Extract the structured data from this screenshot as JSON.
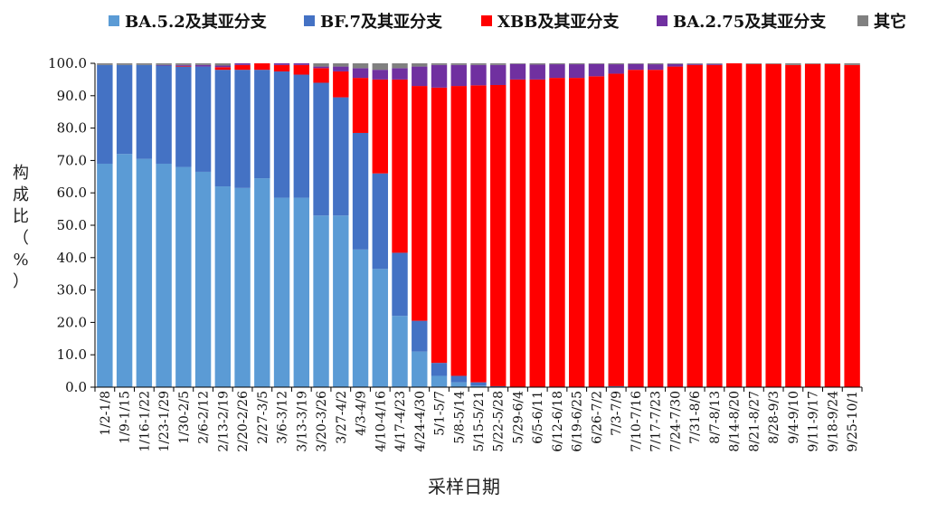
{
  "chart_data": {
    "type": "bar",
    "stacked": true,
    "xlabel": "采样日期",
    "ylabel": "构成比（%）",
    "ylim": [
      0,
      100
    ],
    "yticks": [
      "0.0",
      "10.0",
      "20.0",
      "30.0",
      "40.0",
      "50.0",
      "60.0",
      "70.0",
      "80.0",
      "90.0",
      "100.0"
    ],
    "legend_position": "top",
    "categories": [
      "1/2-1/8",
      "1/9-1/15",
      "1/16-1/22",
      "1/23-1/29",
      "1/30-2/5",
      "2/6-2/12",
      "2/13-2/19",
      "2/20-2/26",
      "2/27-3/5",
      "3/6-3/12",
      "3/13-3/19",
      "3/20-3/26",
      "3/27-4/2",
      "4/3-4/9",
      "4/10-4/16",
      "4/17-4/23",
      "4/24-4/30",
      "5/1-5/7",
      "5/8-5/14",
      "5/15-5/21",
      "5/22-5/28",
      "5/29-6/4",
      "6/5-6/11",
      "6/12-6/18",
      "6/19-6/25",
      "6/26-7/2",
      "7/3-7/9",
      "7/10-7/16",
      "7/17-7/23",
      "7/24-7/30",
      "7/31-8/6",
      "8/7-8/13",
      "8/14-8/20",
      "8/21-8/27",
      "8/28-9/3",
      "9/4-9/10",
      "9/11-9/17",
      "9/18-9/24",
      "9/25-10/1"
    ],
    "series": [
      {
        "name": "BA.5.2及其亚分支",
        "color": "#5b9bd5",
        "values": [
          69,
          72,
          70.5,
          69,
          68,
          66.5,
          62,
          61.5,
          64.5,
          58.5,
          58.5,
          53,
          53,
          42.5,
          36.5,
          22,
          11,
          3.5,
          1.5,
          0.5,
          0,
          0,
          0,
          0,
          0,
          0,
          0.3,
          0,
          0,
          0,
          0,
          0,
          0,
          0,
          0,
          0,
          0,
          0,
          0
        ]
      },
      {
        "name": "BF.7及其亚分支",
        "color": "#4472c4",
        "values": [
          30.5,
          27.5,
          29,
          30.3,
          31,
          32.5,
          36,
          36.5,
          33.5,
          39,
          38,
          41,
          36.5,
          36,
          29.5,
          19.5,
          9.5,
          4,
          2,
          1,
          0.3,
          0,
          0,
          0,
          0,
          0,
          0,
          0,
          0,
          0,
          0,
          0,
          0,
          0,
          0,
          0,
          0,
          0,
          0
        ]
      },
      {
        "name": "XBB及其亚分支",
        "color": "#ff0000",
        "values": [
          0,
          0,
          0,
          0,
          0.2,
          0,
          0.8,
          1.5,
          2,
          2,
          3,
          4.5,
          8,
          17,
          29,
          53.5,
          72.5,
          85,
          89.5,
          91.7,
          93,
          95,
          95,
          95.5,
          95.5,
          96,
          96.5,
          98,
          98,
          99,
          99.5,
          99.5,
          100,
          99.8,
          99.8,
          99.5,
          99.8,
          99.8,
          99.5
        ]
      },
      {
        "name": "BA.2.75及其亚分支",
        "color": "#7030a0",
        "values": [
          0,
          0,
          0,
          0.2,
          0.3,
          0.5,
          0.5,
          0.5,
          0.5,
          0.5,
          0.5,
          0.5,
          1.5,
          3,
          3,
          3.5,
          6,
          7,
          6.5,
          6.3,
          6.2,
          4.8,
          4.6,
          4.2,
          4.2,
          3.8,
          2.9,
          1.8,
          1.7,
          0.8,
          0.3,
          0.3,
          0,
          0,
          0,
          0,
          0,
          0,
          0
        ]
      },
      {
        "name": "其它",
        "color": "#808080",
        "values": [
          0.5,
          0.5,
          0.5,
          0.5,
          0.5,
          0.5,
          0.7,
          0,
          0,
          0,
          0,
          1,
          1,
          1.5,
          2,
          1.5,
          1,
          0.5,
          0.5,
          0.5,
          0.5,
          0.2,
          0.4,
          0.3,
          0.3,
          0.2,
          0.3,
          0.2,
          0.3,
          0.2,
          0.2,
          0.2,
          0,
          0.2,
          0.2,
          0.5,
          0.2,
          0.2,
          0.5
        ]
      }
    ]
  }
}
